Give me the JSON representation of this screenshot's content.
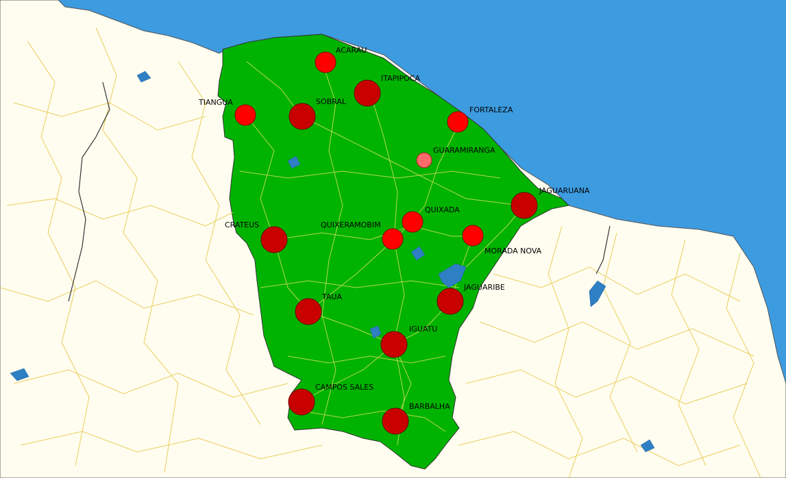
{
  "map": {
    "colors": {
      "ocean": "#3d9be0",
      "land": "#fffdf0",
      "state": "#00b300",
      "roads": "#e8c84a",
      "state_roads": "#d8e05a",
      "water": "#2f7fc4",
      "border": "#333333"
    },
    "cities": [
      {
        "name": "ACARAU",
        "size": "small",
        "color": "#ff0000"
      },
      {
        "name": "ITAPIPOCA",
        "size": "large",
        "color": "#c80000"
      },
      {
        "name": "TIANGUA",
        "size": "small",
        "color": "#ff0000"
      },
      {
        "name": "SOBRAL",
        "size": "large",
        "color": "#c80000"
      },
      {
        "name": "FORTALEZA",
        "size": "small",
        "color": "#ff0000"
      },
      {
        "name": "GUARAMIRANGA",
        "size": "tiny",
        "color": "#ff6a6a"
      },
      {
        "name": "JAGUARUANA",
        "size": "large",
        "color": "#c80000"
      },
      {
        "name": "QUIXADA",
        "size": "small",
        "color": "#ff0000"
      },
      {
        "name": "CRATEUS",
        "size": "large",
        "color": "#c80000"
      },
      {
        "name": "QUIXERAMOBIM",
        "size": "small",
        "color": "#ff0000"
      },
      {
        "name": "MORADA NOVA",
        "size": "small",
        "color": "#ff0000"
      },
      {
        "name": "JAGUARIBE",
        "size": "large",
        "color": "#c80000"
      },
      {
        "name": "TAUA",
        "size": "large",
        "color": "#c80000"
      },
      {
        "name": "IGUATU",
        "size": "large",
        "color": "#c80000"
      },
      {
        "name": "CAMPOS SALES",
        "size": "large",
        "color": "#c80000"
      },
      {
        "name": "BARBALHA",
        "size": "large",
        "color": "#c80000"
      }
    ]
  }
}
